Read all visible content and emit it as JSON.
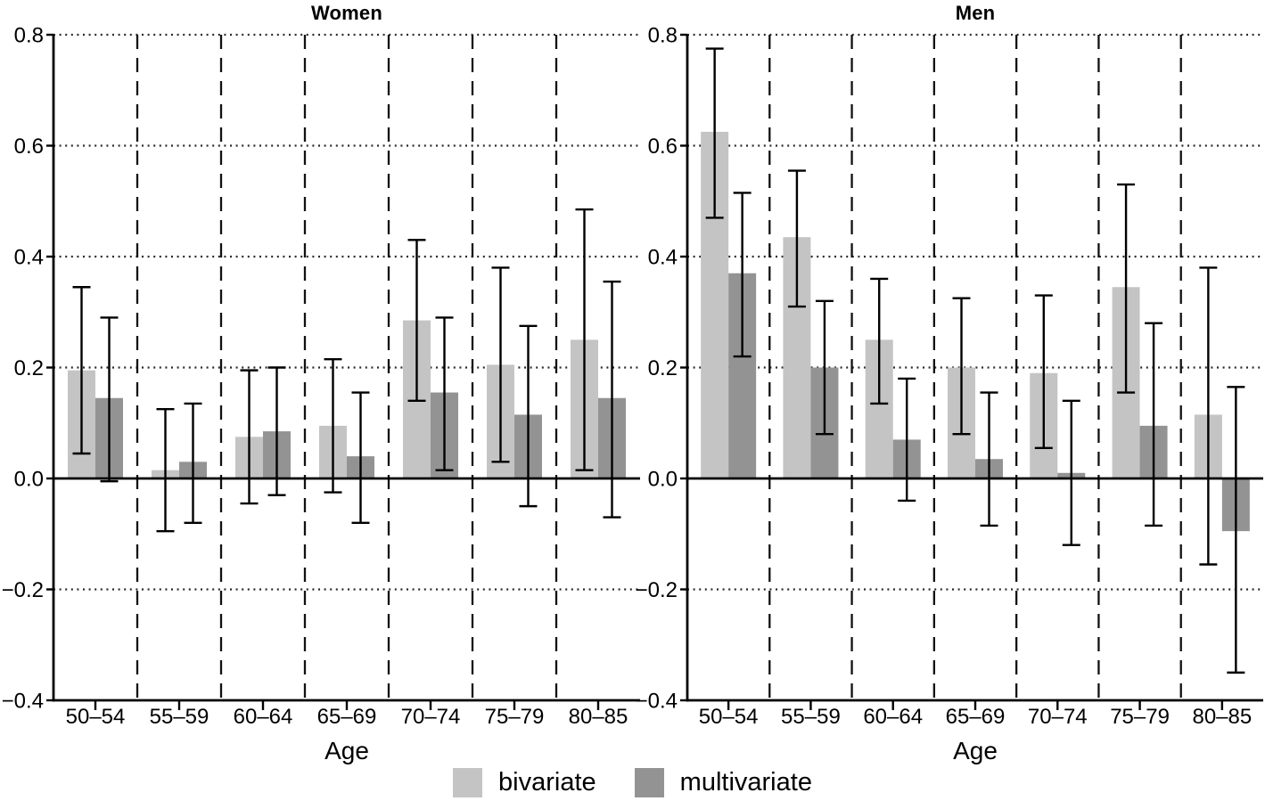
{
  "legend": {
    "items": [
      {
        "label": "bivariate",
        "color": "#c4c4c4"
      },
      {
        "label": "multivariate",
        "color": "#939393"
      }
    ]
  },
  "chart_data": [
    {
      "type": "bar",
      "title": "Women",
      "xlabel": "Age",
      "categories": [
        "50–54",
        "55–59",
        "60–64",
        "65–69",
        "70–74",
        "75–79",
        "80–85"
      ],
      "ylim": [
        -0.4,
        0.8
      ],
      "yticks": [
        0.8,
        0.6,
        0.4,
        0.2,
        0,
        -0.2,
        -0.4
      ],
      "ytick_labels": [
        "0.8",
        "0.6",
        "0.4",
        "0.2",
        "0.0",
        "−0.2",
        "−0.4"
      ],
      "grid": {
        "horizontal": "dotted",
        "vertical_separators": "dashed",
        "zero_line": "solid"
      },
      "legend_position": "bottom",
      "series": [
        {
          "name": "bivariate",
          "color": "#c4c4c4",
          "values": [
            0.195,
            0.015,
            0.075,
            0.095,
            0.285,
            0.205,
            0.25
          ],
          "ci_low": [
            0.045,
            -0.095,
            -0.045,
            -0.025,
            0.14,
            0.03,
            0.015
          ],
          "ci_high": [
            0.345,
            0.125,
            0.195,
            0.215,
            0.43,
            0.38,
            0.485
          ]
        },
        {
          "name": "multivariate",
          "color": "#939393",
          "values": [
            0.145,
            0.03,
            0.085,
            0.04,
            0.155,
            0.115,
            0.145
          ],
          "ci_low": [
            -0.005,
            -0.08,
            -0.03,
            -0.08,
            0.015,
            -0.05,
            -0.07
          ],
          "ci_high": [
            0.29,
            0.135,
            0.2,
            0.155,
            0.29,
            0.275,
            0.355
          ]
        }
      ]
    },
    {
      "type": "bar",
      "title": "Men",
      "xlabel": "Age",
      "categories": [
        "50–54",
        "55–59",
        "60–64",
        "65–69",
        "70–74",
        "75–79",
        "80–85"
      ],
      "ylim": [
        -0.4,
        0.8
      ],
      "yticks": [
        0.8,
        0.6,
        0.4,
        0.2,
        0,
        -0.2,
        -0.4
      ],
      "ytick_labels": [
        "0.8",
        "0.6",
        "0.4",
        "0.2",
        "0.0",
        "−0.2",
        "−0.4"
      ],
      "grid": {
        "horizontal": "dotted",
        "vertical_separators": "dashed",
        "zero_line": "solid"
      },
      "legend_position": "bottom",
      "series": [
        {
          "name": "bivariate",
          "color": "#c4c4c4",
          "values": [
            0.625,
            0.435,
            0.25,
            0.2,
            0.19,
            0.345,
            0.115
          ],
          "ci_low": [
            0.47,
            0.31,
            0.135,
            0.08,
            0.055,
            0.155,
            -0.155
          ],
          "ci_high": [
            0.775,
            0.555,
            0.36,
            0.325,
            0.33,
            0.53,
            0.38
          ]
        },
        {
          "name": "multivariate",
          "color": "#939393",
          "values": [
            0.37,
            0.2,
            0.07,
            0.035,
            0.01,
            0.095,
            -0.095
          ],
          "ci_low": [
            0.22,
            0.08,
            -0.04,
            -0.085,
            -0.12,
            -0.085,
            -0.35
          ],
          "ci_high": [
            0.515,
            0.32,
            0.18,
            0.155,
            0.14,
            0.28,
            0.165
          ]
        }
      ]
    }
  ]
}
